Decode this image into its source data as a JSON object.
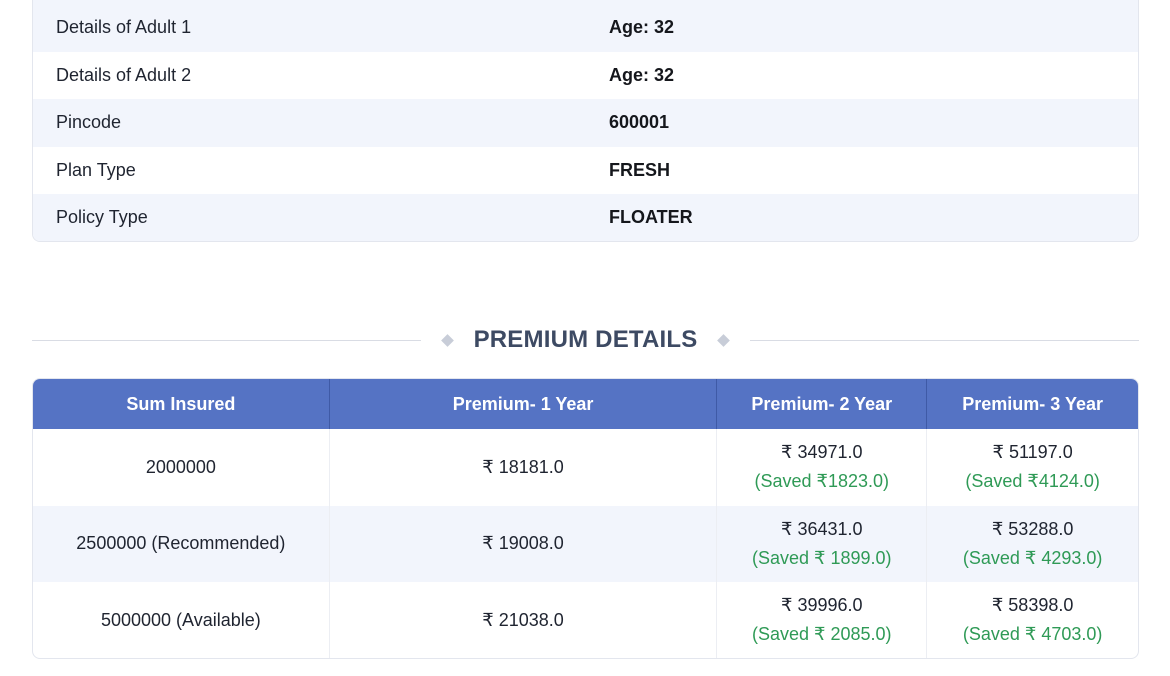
{
  "details": [
    {
      "label": "Details of Adult 1",
      "value": "Age: 32"
    },
    {
      "label": "Details of Adult 2",
      "value": "Age: 32"
    },
    {
      "label": "Pincode",
      "value": "600001"
    },
    {
      "label": "Plan Type",
      "value": "FRESH"
    },
    {
      "label": "Policy Type",
      "value": "FLOATER"
    }
  ],
  "premium": {
    "title": "PREMIUM DETAILS",
    "headers": [
      "Sum Insured",
      "Premium- 1 Year",
      "Premium- 2 Year",
      "Premium- 3 Year"
    ],
    "rows": [
      {
        "sum_insured": "2000000",
        "year1": "₹ 18181.0",
        "year2": "₹ 34971.0",
        "year2_saved": "(Saved ₹1823.0)",
        "year3": "₹ 51197.0",
        "year3_saved": "(Saved ₹4124.0)"
      },
      {
        "sum_insured": "2500000 (Recommended)",
        "year1": "₹ 19008.0",
        "year2": "₹ 36431.0",
        "year2_saved": "(Saved ₹ 1899.0)",
        "year3": "₹ 53288.0",
        "year3_saved": "(Saved ₹ 4293.0)"
      },
      {
        "sum_insured": "5000000 (Available)",
        "year1": "₹ 21038.0",
        "year2": "₹ 39996.0",
        "year2_saved": "(Saved ₹ 2085.0)",
        "year3": "₹ 58398.0",
        "year3_saved": "(Saved ₹ 4703.0)"
      }
    ]
  },
  "colors": {
    "header_bg": "#5573c4",
    "row_alt_bg": "#f2f5fc",
    "saved_text": "#2f9a56",
    "heading_text": "#3d4a63"
  }
}
